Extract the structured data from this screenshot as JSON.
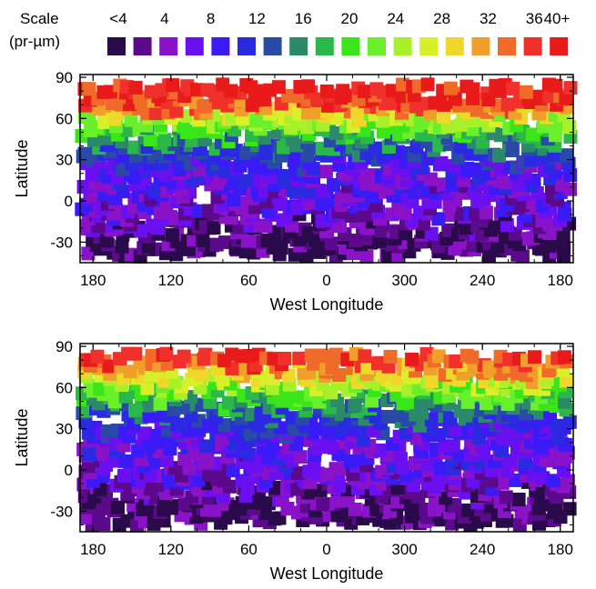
{
  "legend": {
    "title_line1": "Scale",
    "title_line2": "(pr-µm)",
    "labels": [
      "<4",
      "4",
      "8",
      "12",
      "16",
      "20",
      "24",
      "28",
      "32",
      "36",
      "40+"
    ],
    "colors": [
      "#2a0a4a",
      "#5a0a8a",
      "#8a12c8",
      "#6a10f0",
      "#3a1af5",
      "#2a2ae0",
      "#2a4aa8",
      "#2a8a6a",
      "#2ab84a",
      "#3ae61a",
      "#6af02a",
      "#a8f02a",
      "#d8f02a",
      "#f0d82a",
      "#f0a02a",
      "#f06a2a",
      "#f0302a",
      "#e81a1a"
    ]
  },
  "chart_data": [
    {
      "type": "heatmap",
      "title": "",
      "xlabel": "West Longitude",
      "ylabel": "Latitude",
      "x_ticks": [
        "180",
        "120",
        "60",
        "0",
        "300",
        "240",
        "180"
      ],
      "x_tick_values": [
        180,
        120,
        60,
        0,
        300,
        240,
        180
      ],
      "y_ticks": [
        "90",
        "60",
        "30",
        "0",
        "-30"
      ],
      "y_tick_values": [
        90,
        60,
        30,
        0,
        -30
      ],
      "x_range_west_longitude": [
        190,
        170
      ],
      "ylim": [
        -45,
        92
      ],
      "color_scale_units": "pr-µm",
      "color_range": [
        4,
        40
      ],
      "latitude_band_profile": {
        "latitudes": [
          -40,
          -30,
          -20,
          -10,
          0,
          10,
          20,
          30,
          40,
          50,
          60,
          70,
          80
        ],
        "typical_scale": [
          4,
          4,
          6,
          8,
          9,
          10,
          11,
          13,
          17,
          22,
          28,
          38,
          40
        ]
      }
    },
    {
      "type": "heatmap",
      "title": "",
      "xlabel": "West Longitude",
      "ylabel": "Latitude",
      "x_ticks": [
        "180",
        "120",
        "60",
        "0",
        "300",
        "240",
        "180"
      ],
      "x_tick_values": [
        180,
        120,
        60,
        0,
        300,
        240,
        180
      ],
      "y_ticks": [
        "90",
        "60",
        "30",
        "0",
        "-30"
      ],
      "y_tick_values": [
        90,
        60,
        30,
        0,
        -30
      ],
      "x_range_west_longitude": [
        190,
        170
      ],
      "ylim": [
        -45,
        92
      ],
      "color_scale_units": "pr-µm",
      "color_range": [
        4,
        40
      ],
      "latitude_band_profile": {
        "latitudes": [
          -40,
          -30,
          -20,
          -10,
          0,
          10,
          20,
          30,
          40,
          50,
          60,
          70,
          80
        ],
        "typical_scale": [
          4,
          4,
          6,
          8,
          9,
          10,
          11,
          13,
          16,
          21,
          26,
          33,
          38
        ]
      }
    }
  ]
}
